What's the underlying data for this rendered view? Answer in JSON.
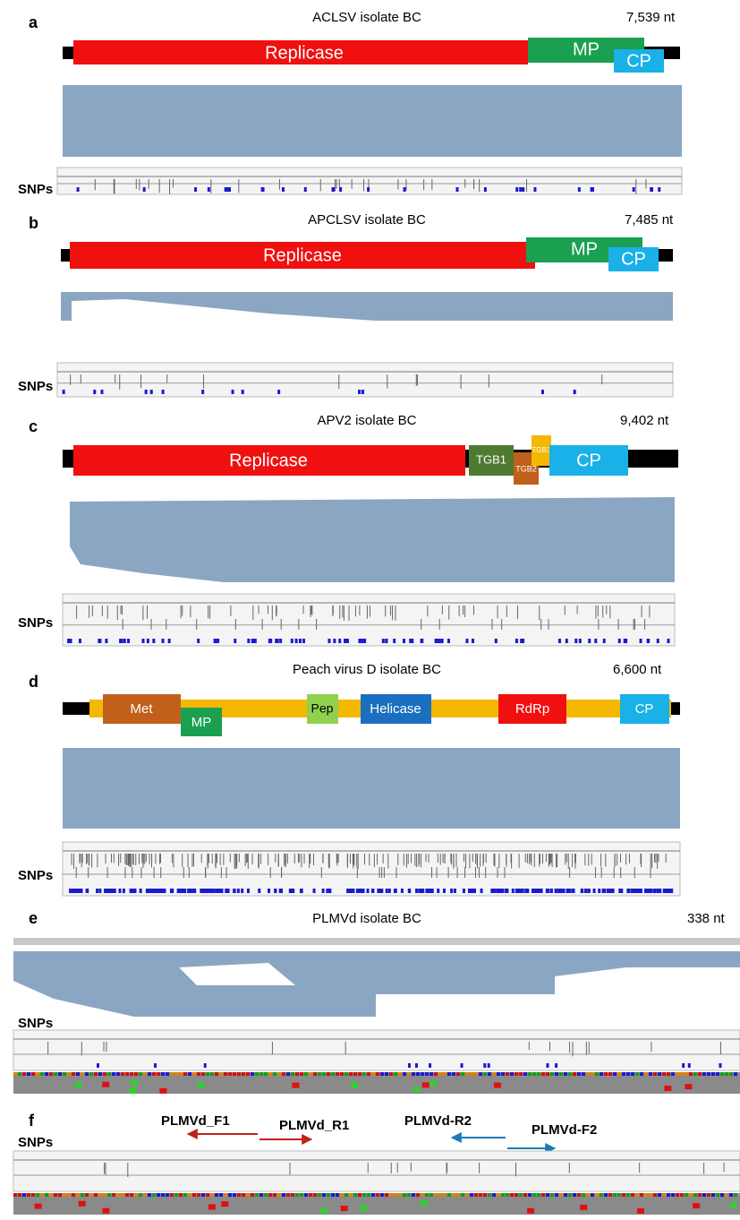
{
  "panels": [
    {
      "letter": "a",
      "title": "ACLSV isolate BC",
      "length": "7,539 nt",
      "genes": [
        "Replicase",
        "MP",
        "CP"
      ],
      "snps_label": "SNPs"
    },
    {
      "letter": "b",
      "title": "APCLSV isolate BC",
      "length": "7,485 nt",
      "genes": [
        "Replicase",
        "MP",
        "CP"
      ],
      "snps_label": "SNPs"
    },
    {
      "letter": "c",
      "title": "APV2 isolate BC",
      "length": "9,402 nt",
      "genes": [
        "Replicase",
        "TGB1",
        "TGB2",
        "TGB3",
        "CP"
      ],
      "snps_label": "SNPs"
    },
    {
      "letter": "d",
      "title": "Peach virus  D isolate BC",
      "length": "6,600 nt",
      "genes": [
        "Met",
        "MP",
        "Pep",
        "Helicase",
        "RdRp",
        "CP"
      ],
      "snps_label": "SNPs"
    },
    {
      "letter": "e",
      "title": "PLMVd isolate BC",
      "length": "338 nt",
      "snps_label": "SNPs"
    },
    {
      "letter": "f",
      "snps_label": "SNPs",
      "primers": [
        "PLMVd_F1",
        "PLMVd_R1",
        "PLMVd-R2",
        "PLMVd-F2"
      ]
    }
  ]
}
